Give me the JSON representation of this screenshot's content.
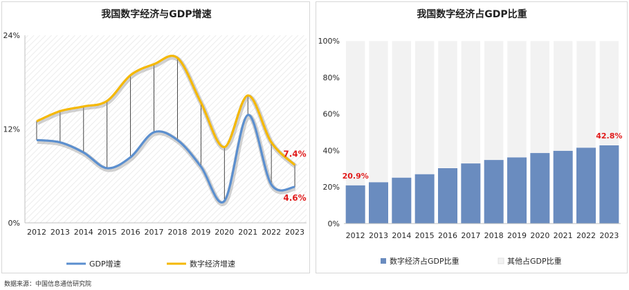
{
  "chart_data": [
    {
      "type": "line",
      "title": "我国数字经济与GDP增速",
      "categories": [
        "2012",
        "2013",
        "2014",
        "2015",
        "2016",
        "2017",
        "2018",
        "2019",
        "2020",
        "2021",
        "2022",
        "2023"
      ],
      "yticks": [
        "0%",
        "12%",
        "24%"
      ],
      "ylim": [
        0,
        24
      ],
      "grid": false,
      "legend_position": "bottom",
      "series": [
        {
          "name": "GDP增速",
          "color": "#5b8fcf",
          "values": [
            10.6,
            10.3,
            9.0,
            7.0,
            8.4,
            11.6,
            10.6,
            7.2,
            2.8,
            13.8,
            4.9,
            4.6
          ]
        },
        {
          "name": "数字经济增速",
          "color": "#f5b800",
          "values": [
            13.0,
            14.3,
            14.9,
            15.6,
            18.9,
            20.3,
            21.1,
            15.4,
            9.7,
            16.3,
            10.3,
            7.4
          ]
        }
      ],
      "data_labels": [
        {
          "text": "7.4%",
          "series": 1,
          "index": 11
        },
        {
          "text": "4.6%",
          "series": 0,
          "index": 11
        }
      ],
      "label_color": "#e11b1b"
    },
    {
      "type": "bar",
      "stacked": true,
      "title": "我国数字经济占GDP比重",
      "categories": [
        "2012",
        "2013",
        "2014",
        "2015",
        "2016",
        "2017",
        "2018",
        "2019",
        "2020",
        "2021",
        "2022",
        "2023"
      ],
      "yticks": [
        "0%",
        "20%",
        "40%",
        "60%",
        "80%",
        "100%"
      ],
      "ylim": [
        0,
        100
      ],
      "grid": false,
      "legend_position": "bottom",
      "series": [
        {
          "name": "数字经济占GDP比重",
          "color": "#6a8cbf",
          "values": [
            20.9,
            22.6,
            25.1,
            27.0,
            30.3,
            32.9,
            34.8,
            36.2,
            38.6,
            39.8,
            41.5,
            42.8
          ]
        },
        {
          "name": "其他占GDP比重",
          "color": "#f2f2f2",
          "values": [
            79.1,
            77.4,
            74.9,
            73.0,
            69.7,
            67.1,
            65.2,
            63.8,
            61.4,
            60.2,
            58.5,
            57.2
          ]
        }
      ],
      "data_labels": [
        {
          "text": "20.9%",
          "series": 0,
          "index": 0
        },
        {
          "text": "42.8%",
          "series": 0,
          "index": 11
        }
      ],
      "label_color": "#e11b1b"
    }
  ],
  "source": "数据来源：中国信息通信研究院"
}
